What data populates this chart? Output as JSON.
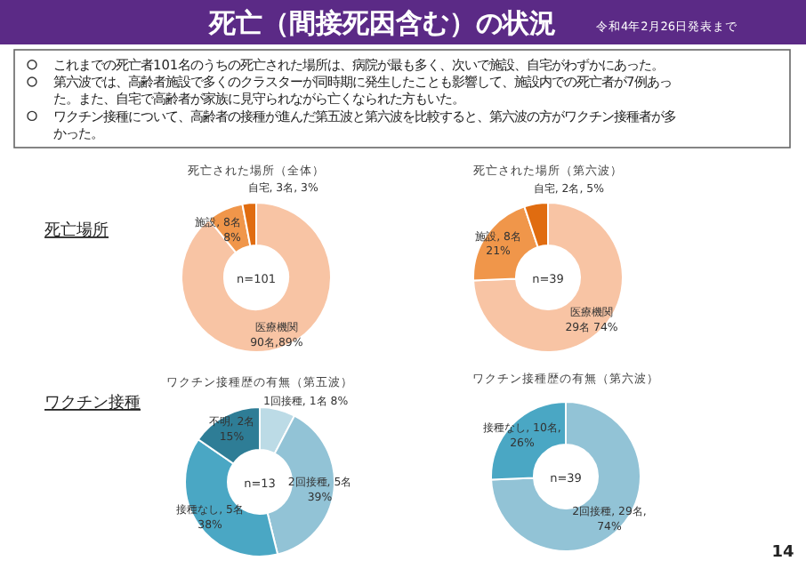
{
  "chart_data": [
    {
      "type": "other",
      "title": "死亡（間接死因含む）の状況",
      "subtitle": "令和4年2月26日発表まで",
      "annotations": [
        "これまでの死亡者101名のうちの死亡された場所は、病院が最も多く、次いで施設、自宅がわずかにあった。",
        "第六波では、高齢者施設で多くのクラスターが同時期に発生したことも影響して、施設内での死亡者が7例あった。また、自宅で高齢者が家族に見守られながら亡くなられた方もいた。",
        "ワクチン接種について、高齢者の接種が進んだ第五波と第六波を比較すると、第六波の方がワクチン接種者が多かった。",
        "死亡場所",
        "ワクチン接種",
        "14"
      ]
    },
    {
      "type": "donut",
      "title": "死亡された場所（全体）",
      "categories": [
        "医療機関",
        "施設",
        "自宅"
      ],
      "values": [
        90,
        8,
        3
      ],
      "colors": [
        "#f8c4a4",
        "#f0964a",
        "#e06c10"
      ],
      "value_labels": [
        "\n90名,89%",
        ", 8名\n8%",
        ", 3名, 3%"
      ],
      "annotations": [
        "n=101"
      ]
    },
    {
      "type": "donut",
      "title": "死亡された場所（第六波）",
      "categories": [
        "医療機関",
        "施設",
        "自宅"
      ],
      "values": [
        29,
        8,
        2
      ],
      "colors": [
        "#f8c4a4",
        "#f0964a",
        "#e06c10"
      ],
      "value_labels": [
        "\n29名 74%",
        ", 8名\n21%",
        ", 2名, 5%"
      ],
      "annotations": [
        "n=39"
      ]
    },
    {
      "type": "donut",
      "title": "ワクチン接種歴の有無（第五波）",
      "categories": [
        "1回接種",
        "2回接種",
        "接種なし",
        "不明"
      ],
      "values": [
        1,
        5,
        5,
        2
      ],
      "colors": [
        "#bcdbe6",
        "#92c3d6",
        "#4aa7c4",
        "#2e7d96"
      ],
      "value_labels": [
        ", 1名 8%",
        ", 5名\n39%",
        ", 5名\n38%",
        ", 2名\n15%"
      ],
      "annotations": [
        "n=13"
      ]
    },
    {
      "type": "donut",
      "title": "ワクチン接種歴の有無（第六波）",
      "categories": [
        "2回接種",
        "接種なし"
      ],
      "values": [
        29,
        10
      ],
      "colors": [
        "#92c3d6",
        "#4aa7c4"
      ],
      "value_labels": [
        ", 29名,\n74%",
        ", 10名,\n26%"
      ],
      "annotations": [
        "n=39"
      ]
    }
  ]
}
